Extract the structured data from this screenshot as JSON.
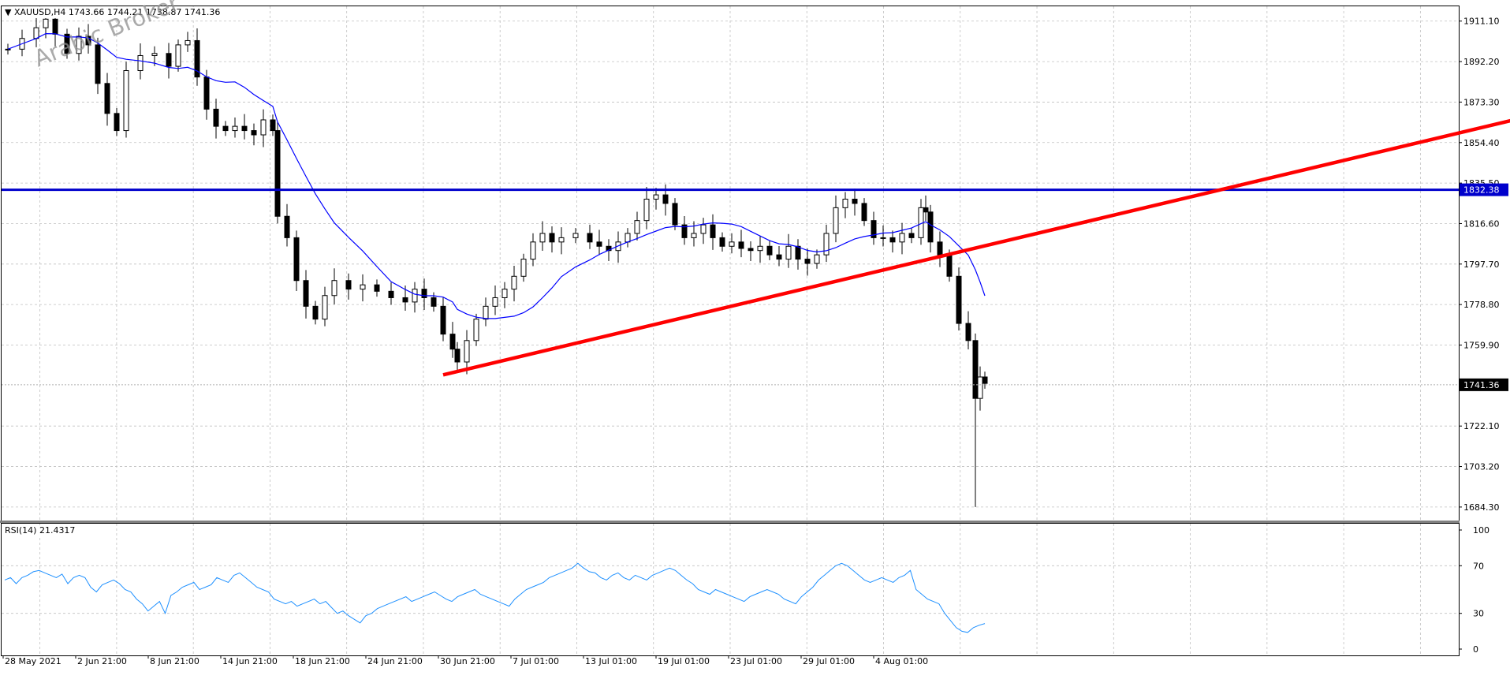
{
  "header": {
    "symbol": "XAUUSD,H4",
    "open": "1743.66",
    "high": "1744.21",
    "low": "1738.87",
    "close": "1741.36"
  },
  "watermark": "Arabic Broker",
  "rsi_label": "RSI(14) 21.4317",
  "colors": {
    "ma": "#0000ff",
    "rsi": "#1e90ff",
    "trendline": "#ff0000",
    "horizontal_line": "#0000cc",
    "grid": "#c0c0c0"
  },
  "chart_data": [
    {
      "type": "candlestick",
      "symbol": "XAUUSD",
      "timeframe": "H4",
      "y_ticks": [
        "1911.10",
        "1892.20",
        "1873.30",
        "1854.40",
        "1835.50",
        "1816.60",
        "1797.70",
        "1778.80",
        "1759.90",
        "1741.36",
        "1722.10",
        "1703.20",
        "1684.30"
      ],
      "ylim": [
        1678,
        1918
      ],
      "x_ticks": [
        "28 May 2021",
        "2 Jun 21:00",
        "8 Jun 21:00",
        "14 Jun 21:00",
        "18 Jun 21:00",
        "24 Jun 21:00",
        "30 Jun 21:00",
        "7 Jul 01:00",
        "13 Jul 01:00",
        "19 Jul 01:00",
        "23 Jul 01:00",
        "29 Jul 01:00",
        "4 Aug 01:00"
      ],
      "horizontal_line": {
        "value": 1832.38,
        "label": "1832.38"
      },
      "current_price": {
        "value": 1741.36,
        "label": "1741.36"
      },
      "trendline": {
        "start": {
          "time": "25 Jun",
          "price": 1746
        },
        "end": {
          "time": "beyond chart right",
          "price": 1865
        }
      },
      "price_path": [
        [
          0,
          1898
        ],
        [
          6,
          1903
        ],
        [
          12,
          1908
        ],
        [
          16,
          1912
        ],
        [
          20,
          1905
        ],
        [
          25,
          1896
        ],
        [
          30,
          1904
        ],
        [
          34,
          1900
        ],
        [
          38,
          1882
        ],
        [
          42,
          1868
        ],
        [
          46,
          1860
        ],
        [
          50,
          1888
        ],
        [
          56,
          1895
        ],
        [
          62,
          1896
        ],
        [
          68,
          1890
        ],
        [
          72,
          1900
        ],
        [
          76,
          1902
        ],
        [
          80,
          1885
        ],
        [
          84,
          1870
        ],
        [
          88,
          1862
        ],
        [
          92,
          1860
        ],
        [
          96,
          1862
        ],
        [
          100,
          1860
        ],
        [
          104,
          1858
        ],
        [
          108,
          1865
        ],
        [
          112,
          1860
        ],
        [
          114,
          1820
        ],
        [
          118,
          1810
        ],
        [
          122,
          1790
        ],
        [
          126,
          1778
        ],
        [
          130,
          1772
        ],
        [
          134,
          1783
        ],
        [
          138,
          1790
        ],
        [
          144,
          1786
        ],
        [
          150,
          1788
        ],
        [
          156,
          1785
        ],
        [
          162,
          1782
        ],
        [
          168,
          1780
        ],
        [
          172,
          1786
        ],
        [
          176,
          1782
        ],
        [
          180,
          1778
        ],
        [
          184,
          1765
        ],
        [
          188,
          1758
        ],
        [
          190,
          1752
        ],
        [
          194,
          1762
        ],
        [
          198,
          1772
        ],
        [
          202,
          1778
        ],
        [
          206,
          1782
        ],
        [
          210,
          1786
        ],
        [
          214,
          1792
        ],
        [
          218,
          1800
        ],
        [
          222,
          1808
        ],
        [
          226,
          1812
        ],
        [
          230,
          1808
        ],
        [
          234,
          1810
        ],
        [
          240,
          1812
        ],
        [
          246,
          1808
        ],
        [
          250,
          1806
        ],
        [
          254,
          1804
        ],
        [
          258,
          1808
        ],
        [
          262,
          1812
        ],
        [
          266,
          1818
        ],
        [
          270,
          1828
        ],
        [
          274,
          1830
        ],
        [
          278,
          1826
        ],
        [
          282,
          1816
        ],
        [
          286,
          1810
        ],
        [
          290,
          1812
        ],
        [
          294,
          1816
        ],
        [
          298,
          1810
        ],
        [
          302,
          1806
        ],
        [
          306,
          1808
        ],
        [
          310,
          1805
        ],
        [
          314,
          1804
        ],
        [
          318,
          1806
        ],
        [
          322,
          1802
        ],
        [
          326,
          1800
        ],
        [
          330,
          1806
        ],
        [
          334,
          1800
        ],
        [
          338,
          1798
        ],
        [
          342,
          1802
        ],
        [
          346,
          1812
        ],
        [
          350,
          1824
        ],
        [
          354,
          1828
        ],
        [
          358,
          1826
        ],
        [
          362,
          1818
        ],
        [
          366,
          1810
        ],
        [
          370,
          1810
        ],
        [
          374,
          1808
        ],
        [
          378,
          1812
        ],
        [
          382,
          1810
        ],
        [
          386,
          1824
        ],
        [
          388,
          1822
        ],
        [
          390,
          1808
        ],
        [
          394,
          1802
        ],
        [
          398,
          1792
        ],
        [
          402,
          1770
        ],
        [
          406,
          1762
        ],
        [
          409,
          1735
        ],
        [
          411,
          1745
        ],
        [
          413,
          1742
        ]
      ],
      "series": [
        {
          "name": "",
          "kind": "moving-average"
        }
      ]
    },
    {
      "type": "line",
      "indicator": "RSI",
      "period": 14,
      "value": 21.4317,
      "y_ticks": [
        "100",
        "70",
        "30",
        "0"
      ],
      "ylim": [
        0,
        100
      ],
      "values": [
        58,
        60,
        55,
        60,
        62,
        65,
        66,
        64,
        62,
        60,
        63,
        55,
        60,
        62,
        60,
        52,
        48,
        54,
        56,
        58,
        55,
        50,
        48,
        42,
        38,
        32,
        36,
        40,
        30,
        45,
        48,
        52,
        54,
        56,
        50,
        52,
        54,
        60,
        58,
        56,
        62,
        64,
        60,
        56,
        52,
        50,
        48,
        42,
        40,
        38,
        40,
        36,
        38,
        40,
        42,
        38,
        40,
        35,
        30,
        32,
        28,
        25,
        22,
        28,
        30,
        34,
        36,
        38,
        40,
        42,
        44,
        40,
        42,
        44,
        46,
        48,
        45,
        42,
        40,
        44,
        46,
        48,
        50,
        46,
        44,
        42,
        40,
        38,
        36,
        42,
        46,
        50,
        52,
        54,
        56,
        60,
        62,
        64,
        66,
        68,
        72,
        68,
        65,
        64,
        60,
        58,
        62,
        64,
        60,
        58,
        62,
        60,
        58,
        62,
        64,
        66,
        68,
        66,
        62,
        58,
        55,
        50,
        48,
        46,
        50,
        48,
        46,
        44,
        42,
        40,
        44,
        46,
        48,
        50,
        48,
        46,
        42,
        40,
        38,
        44,
        48,
        52,
        58,
        62,
        66,
        70,
        72,
        70,
        66,
        62,
        58,
        56,
        58,
        60,
        58,
        56,
        60,
        62,
        66,
        50,
        46,
        42,
        40,
        38,
        30,
        24,
        18,
        15,
        14,
        18,
        20,
        21.43
      ]
    }
  ]
}
